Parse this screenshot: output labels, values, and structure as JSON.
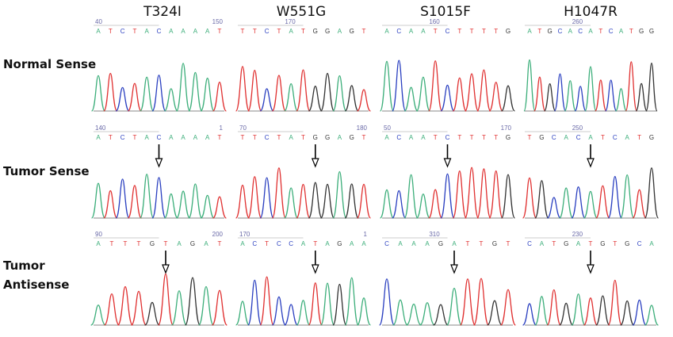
{
  "columns": [
    "T324I",
    "W551G",
    "S1015F",
    "H1047R"
  ],
  "rows": [
    {
      "label": [
        "Normal Sense"
      ],
      "panels": [
        {
          "positions": [
            40,
            150
          ],
          "bases": [
            "A",
            "T",
            "C",
            "T",
            "A",
            "C",
            "A",
            "A",
            "A",
            "A",
            "T"
          ]
        },
        {
          "positions": [
            170
          ],
          "bases": [
            "T",
            "T",
            "C",
            "T",
            "A",
            "T",
            "G",
            "G",
            "A",
            "G",
            "T"
          ]
        },
        {
          "positions": [
            160
          ],
          "bases": [
            "A",
            "C",
            "A",
            "A",
            "T",
            "C",
            "T",
            "T",
            "T",
            "T",
            "G"
          ]
        },
        {
          "positions": [
            260
          ],
          "bases": [
            "A",
            "T",
            "G",
            "C",
            "A",
            "C",
            "A",
            "T",
            "C",
            "A",
            "T",
            "G",
            "G"
          ]
        }
      ]
    },
    {
      "label": [
        "Tumor Sense"
      ],
      "panels": [
        {
          "positions": [
            140,
            1
          ],
          "bases": [
            "A",
            "T",
            "C",
            "T",
            "A",
            "C",
            "A",
            "A",
            "A",
            "A",
            "T"
          ]
        },
        {
          "positions": [
            70,
            180
          ],
          "bases": [
            "T",
            "T",
            "C",
            "T",
            "A",
            "T",
            "G",
            "G",
            "A",
            "G",
            "T"
          ]
        },
        {
          "positions": [
            50,
            170
          ],
          "bases": [
            "A",
            "C",
            "A",
            "A",
            "T",
            "C",
            "T",
            "T",
            "T",
            "T",
            "G"
          ]
        },
        {
          "positions": [
            250
          ],
          "bases": [
            "T",
            "G",
            "C",
            "A",
            "C",
            "A",
            "T",
            "C",
            "A",
            "T",
            "G"
          ]
        }
      ]
    },
    {
      "label": [
        "Tumor",
        "Antisense"
      ],
      "panels": [
        {
          "positions": [
            90,
            200
          ],
          "bases": [
            "A",
            "T",
            "T",
            "T",
            "G",
            "T",
            "A",
            "G",
            "A",
            "T"
          ]
        },
        {
          "positions": [
            170,
            1
          ],
          "bases": [
            "A",
            "C",
            "T",
            "C",
            "C",
            "A",
            "T",
            "A",
            "G",
            "A",
            "A"
          ]
        },
        {
          "positions": [
            310
          ],
          "bases": [
            "C",
            "A",
            "A",
            "A",
            "G",
            "A",
            "T",
            "T",
            "G",
            "T"
          ]
        },
        {
          "positions": [
            230
          ],
          "bases": [
            "C",
            "A",
            "T",
            "G",
            "A",
            "T",
            "G",
            "T",
            "G",
            "C",
            "A"
          ]
        }
      ]
    }
  ]
}
